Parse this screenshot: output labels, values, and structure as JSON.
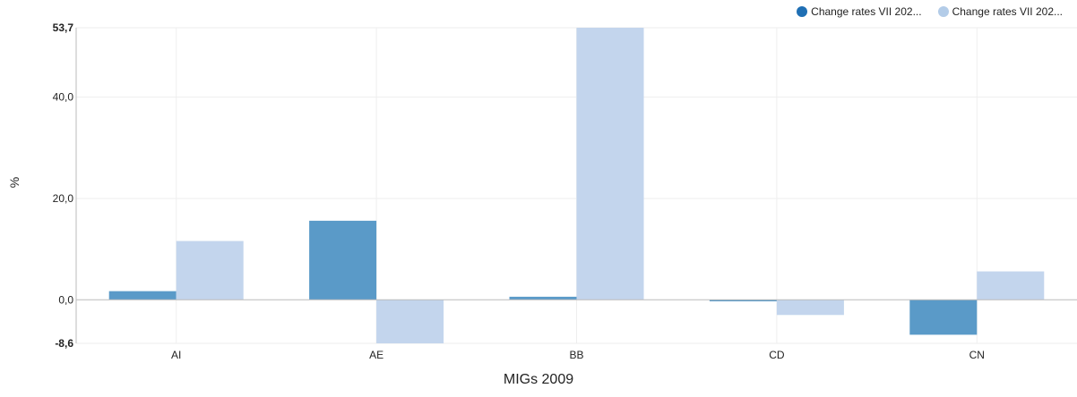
{
  "chart_data": {
    "type": "bar",
    "xlabel": "MIGs 2009",
    "ylabel": "%",
    "categories": [
      "AI",
      "AE",
      "BB",
      "CD",
      "CN"
    ],
    "series": [
      {
        "name": "Change rates VII 202...",
        "color": "#5a9ac8",
        "values": [
          1.7,
          15.6,
          0.6,
          -0.3,
          -6.9
        ]
      },
      {
        "name": "Change rates VII 202...",
        "color": "#c3d5ed",
        "values": [
          11.6,
          -8.6,
          53.7,
          -3.0,
          5.6
        ]
      }
    ],
    "ylim": [
      -8.6,
      53.7
    ],
    "y_ticks": [
      {
        "value": -8.6,
        "label": "-8,6",
        "bold": true
      },
      {
        "value": 0,
        "label": "0,0",
        "bold": false
      },
      {
        "value": 20,
        "label": "20,0",
        "bold": false
      },
      {
        "value": 40,
        "label": "40,0",
        "bold": false
      },
      {
        "value": 53.7,
        "label": "53,7",
        "bold": true
      }
    ],
    "legend_position": "top-right",
    "grid": true,
    "legend_marker_colors": [
      "#1f6fb4",
      "#b3cce8"
    ]
  }
}
